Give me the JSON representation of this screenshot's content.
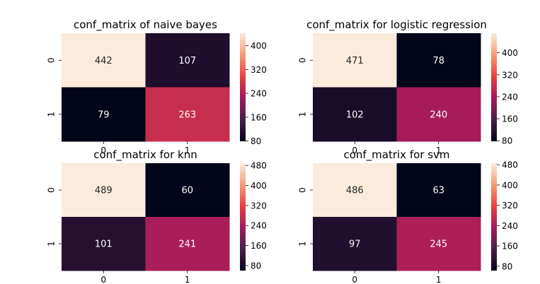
{
  "colormap": [
    "#03051a",
    "#4c1d4b",
    "#a11a5b",
    "#e83f3f",
    "#f69c73",
    "#faebdd"
  ],
  "chart_data": [
    {
      "type": "heatmap",
      "title": "conf_matrix of naive bayes",
      "xticklabels": [
        "0",
        "1"
      ],
      "yticklabels": [
        "0",
        "1"
      ],
      "values": [
        [
          442,
          107
        ],
        [
          79,
          263
        ]
      ],
      "colorbar": {
        "vmin": 79,
        "vmax": 442,
        "ticks": [
          80,
          160,
          240,
          320,
          400
        ]
      }
    },
    {
      "type": "heatmap",
      "title": "conf_matrix for logistic regression",
      "xticklabels": [
        "0",
        "1"
      ],
      "yticklabels": [
        "0",
        "1"
      ],
      "values": [
        [
          471,
          78
        ],
        [
          102,
          240
        ]
      ],
      "colorbar": {
        "vmin": 78,
        "vmax": 471,
        "ticks": [
          80,
          160,
          240,
          320,
          400
        ]
      }
    },
    {
      "type": "heatmap",
      "title": "conf_matrix for knn",
      "xticklabels": [
        "0",
        "1"
      ],
      "yticklabels": [
        "0",
        "1"
      ],
      "values": [
        [
          489,
          60
        ],
        [
          101,
          241
        ]
      ],
      "colorbar": {
        "vmin": 60,
        "vmax": 489,
        "ticks": [
          80,
          160,
          240,
          320,
          400,
          480
        ]
      }
    },
    {
      "type": "heatmap",
      "title": "conf_matrix for svm",
      "xticklabels": [
        "0",
        "1"
      ],
      "yticklabels": [
        "0",
        "1"
      ],
      "values": [
        [
          486,
          63
        ],
        [
          97,
          245
        ]
      ],
      "colorbar": {
        "vmin": 63,
        "vmax": 486,
        "ticks": [
          80,
          160,
          240,
          320,
          400,
          480
        ]
      }
    }
  ]
}
